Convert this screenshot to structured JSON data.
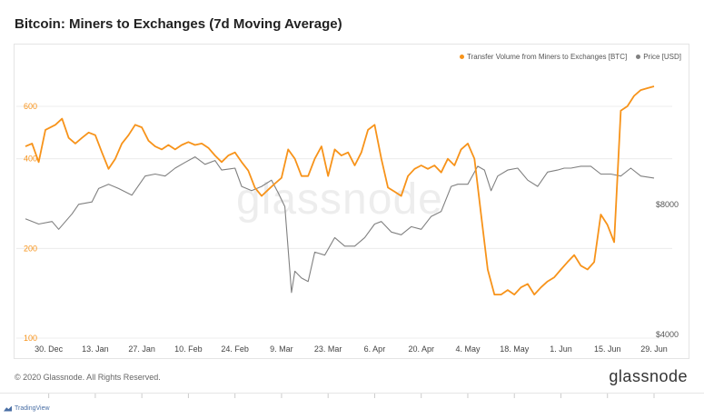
{
  "title": "Bitcoin: Miners to Exchanges (7d Moving Average)",
  "copyright": "© 2020 Glassnode. All Rights Reserved.",
  "brand": "glassnode",
  "watermark": "glassnode",
  "tradingview": "TradingView",
  "colors": {
    "transfer": "#f7931a",
    "price": "#808080",
    "grid": "#ececec"
  },
  "chart_data": {
    "type": "line",
    "title": "Bitcoin: Miners to Exchanges (7d Moving Average)",
    "x_tick_labels": [
      "30. Dec",
      "13. Jan",
      "27. Jan",
      "10. Feb",
      "24. Feb",
      "9. Mar",
      "23. Mar",
      "6. Apr",
      "20. Apr",
      "4. May",
      "18. May",
      "1. Jun",
      "15. Jun",
      "29. Jun"
    ],
    "x_ticks": [
      "2019-12-30",
      "2020-01-13",
      "2020-01-27",
      "2020-02-10",
      "2020-02-24",
      "2020-03-09",
      "2020-03-23",
      "2020-04-06",
      "2020-04-20",
      "2020-05-04",
      "2020-05-18",
      "2020-06-01",
      "2020-06-15",
      "2020-06-29"
    ],
    "x_range": [
      "2019-12-23",
      "2020-06-29"
    ],
    "left_axis": {
      "scale": "log",
      "range": [
        100,
        700
      ],
      "tick_values": [
        100,
        200,
        400,
        600
      ],
      "tick_labels": [
        "100",
        "200",
        "400",
        "600"
      ]
    },
    "right_axis": {
      "scale": "log",
      "range": [
        3920,
        15000
      ],
      "tick_values": [
        4000,
        8000
      ],
      "tick_labels": [
        "$4000",
        "$8000"
      ]
    },
    "legend_position": "top-right",
    "grid": true,
    "series": [
      {
        "name": "Transfer Volume from Miners to Exchanges [BTC]",
        "axis": "left",
        "color": "#f7931a",
        "x": [
          "2019-12-23",
          "2019-12-25",
          "2019-12-27",
          "2019-12-29",
          "2020-01-01",
          "2020-01-03",
          "2020-01-05",
          "2020-01-07",
          "2020-01-09",
          "2020-01-11",
          "2020-01-13",
          "2020-01-15",
          "2020-01-17",
          "2020-01-19",
          "2020-01-21",
          "2020-01-23",
          "2020-01-25",
          "2020-01-27",
          "2020-01-29",
          "2020-01-31",
          "2020-02-02",
          "2020-02-04",
          "2020-02-06",
          "2020-02-08",
          "2020-02-10",
          "2020-02-12",
          "2020-02-14",
          "2020-02-16",
          "2020-02-18",
          "2020-02-20",
          "2020-02-22",
          "2020-02-24",
          "2020-02-26",
          "2020-02-28",
          "2020-03-01",
          "2020-03-03",
          "2020-03-05",
          "2020-03-07",
          "2020-03-09",
          "2020-03-11",
          "2020-03-13",
          "2020-03-15",
          "2020-03-17",
          "2020-03-19",
          "2020-03-21",
          "2020-03-23",
          "2020-03-25",
          "2020-03-27",
          "2020-03-29",
          "2020-03-31",
          "2020-04-02",
          "2020-04-04",
          "2020-04-06",
          "2020-04-08",
          "2020-04-10",
          "2020-04-12",
          "2020-04-14",
          "2020-04-16",
          "2020-04-18",
          "2020-04-20",
          "2020-04-22",
          "2020-04-24",
          "2020-04-26",
          "2020-04-28",
          "2020-04-30",
          "2020-05-02",
          "2020-05-04",
          "2020-05-06",
          "2020-05-08",
          "2020-05-10",
          "2020-05-12",
          "2020-05-14",
          "2020-05-16",
          "2020-05-18",
          "2020-05-20",
          "2020-05-22",
          "2020-05-24",
          "2020-05-26",
          "2020-05-28",
          "2020-05-30",
          "2020-06-01",
          "2020-06-03",
          "2020-06-05",
          "2020-06-07",
          "2020-06-09",
          "2020-06-11",
          "2020-06-13",
          "2020-06-15",
          "2020-06-17",
          "2020-06-19",
          "2020-06-21",
          "2020-06-23",
          "2020-06-25",
          "2020-06-27",
          "2020-06-29"
        ],
        "y": [
          440,
          450,
          390,
          500,
          520,
          545,
          470,
          450,
          470,
          490,
          480,
          420,
          370,
          400,
          450,
          480,
          520,
          510,
          460,
          440,
          430,
          445,
          430,
          445,
          455,
          445,
          450,
          435,
          410,
          390,
          410,
          420,
          390,
          365,
          320,
          300,
          315,
          330,
          345,
          430,
          400,
          350,
          350,
          400,
          440,
          350,
          430,
          410,
          420,
          380,
          420,
          500,
          520,
          400,
          320,
          310,
          300,
          350,
          370,
          380,
          370,
          380,
          360,
          400,
          380,
          430,
          450,
          400,
          260,
          170,
          140,
          140,
          145,
          140,
          148,
          152,
          140,
          148,
          155,
          160,
          170,
          180,
          190,
          175,
          170,
          180,
          260,
          240,
          210,
          580,
          600,
          650,
          680,
          690,
          700
        ]
      },
      {
        "name": "Price [USD]",
        "axis": "right",
        "color": "#808080",
        "x": [
          "2019-12-23",
          "2019-12-27",
          "2019-12-31",
          "2020-01-02",
          "2020-01-06",
          "2020-01-08",
          "2020-01-12",
          "2020-01-14",
          "2020-01-17",
          "2020-01-20",
          "2020-01-24",
          "2020-01-28",
          "2020-01-31",
          "2020-02-03",
          "2020-02-06",
          "2020-02-09",
          "2020-02-12",
          "2020-02-15",
          "2020-02-18",
          "2020-02-20",
          "2020-02-24",
          "2020-02-26",
          "2020-02-29",
          "2020-03-03",
          "2020-03-06",
          "2020-03-08",
          "2020-03-10",
          "2020-03-12",
          "2020-03-13",
          "2020-03-15",
          "2020-03-17",
          "2020-03-19",
          "2020-03-22",
          "2020-03-25",
          "2020-03-28",
          "2020-03-31",
          "2020-04-03",
          "2020-04-06",
          "2020-04-08",
          "2020-04-11",
          "2020-04-14",
          "2020-04-17",
          "2020-04-20",
          "2020-04-23",
          "2020-04-26",
          "2020-04-29",
          "2020-05-01",
          "2020-05-04",
          "2020-05-07",
          "2020-05-09",
          "2020-05-11",
          "2020-05-13",
          "2020-05-16",
          "2020-05-19",
          "2020-05-22",
          "2020-05-25",
          "2020-05-28",
          "2020-05-31",
          "2020-06-02",
          "2020-06-04",
          "2020-06-07",
          "2020-06-10",
          "2020-06-13",
          "2020-06-16",
          "2020-06-19",
          "2020-06-22",
          "2020-06-25",
          "2020-06-29"
        ],
        "y": [
          7400,
          7200,
          7300,
          7000,
          7600,
          8000,
          8100,
          8700,
          8900,
          8700,
          8400,
          9300,
          9400,
          9300,
          9700,
          10000,
          10300,
          9900,
          10100,
          9600,
          9700,
          8800,
          8600,
          8800,
          9100,
          8500,
          7900,
          5000,
          5600,
          5400,
          5300,
          6200,
          6100,
          6700,
          6400,
          6400,
          6700,
          7200,
          7300,
          6900,
          6800,
          7100,
          7000,
          7500,
          7700,
          8800,
          8900,
          8900,
          9800,
          9600,
          8600,
          9300,
          9600,
          9700,
          9100,
          8800,
          9500,
          9600,
          9700,
          9700,
          9800,
          9800,
          9400,
          9400,
          9300,
          9700,
          9300,
          9200
        ]
      }
    ]
  }
}
